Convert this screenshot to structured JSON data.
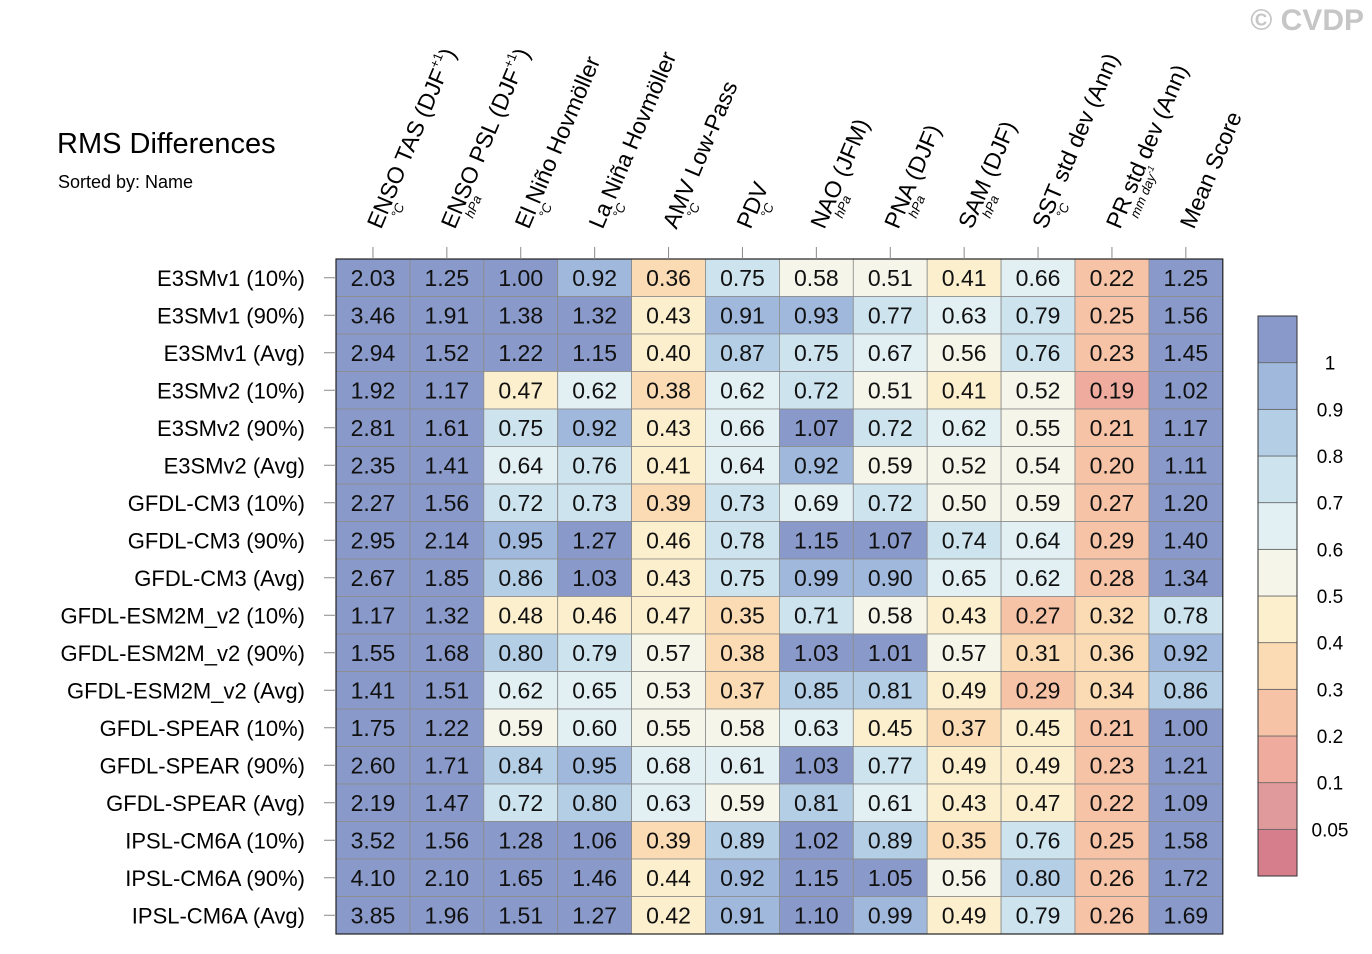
{
  "watermark": "© CVDP",
  "title": "RMS Differences",
  "subtitle": "Sorted by: Name",
  "chart_data": {
    "type": "heatmap",
    "title": "RMS Differences",
    "subtitle": "Sorted by: Name",
    "columns": [
      {
        "label": "ENSO TAS (DJF",
        "sup": "+1",
        "close": ")",
        "unit": "°C"
      },
      {
        "label": "ENSO PSL (DJF",
        "sup": "+1",
        "close": ")",
        "unit": "hPa"
      },
      {
        "label": "El Niño Hovmöller",
        "sup": "",
        "close": "",
        "unit": "°C"
      },
      {
        "label": "La Niña Hovmöller",
        "sup": "",
        "close": "",
        "unit": "°C"
      },
      {
        "label": "AMV Low-Pass",
        "sup": "",
        "close": "",
        "unit": "°C"
      },
      {
        "label": "PDV",
        "sup": "",
        "close": "",
        "unit": "°C"
      },
      {
        "label": "NAO (JFM)",
        "sup": "",
        "close": "",
        "unit": "hPa"
      },
      {
        "label": "PNA (DJF)",
        "sup": "",
        "close": "",
        "unit": "hPa"
      },
      {
        "label": "SAM (DJF)",
        "sup": "",
        "close": "",
        "unit": "hPa"
      },
      {
        "label": "SST std dev (Ann)",
        "sup": "",
        "close": "",
        "unit": "°C"
      },
      {
        "label": "PR std dev (Ann)",
        "sup": "",
        "close": "",
        "unit": "mm day",
        "unit_sup": "-1"
      },
      {
        "label": "Mean Score",
        "sup": "",
        "close": "",
        "unit": ""
      }
    ],
    "rows": [
      "E3SMv1 (10%)",
      "E3SMv1 (90%)",
      "E3SMv1 (Avg)",
      "E3SMv2 (10%)",
      "E3SMv2 (90%)",
      "E3SMv2 (Avg)",
      "GFDL-CM3 (10%)",
      "GFDL-CM3 (90%)",
      "GFDL-CM3 (Avg)",
      "GFDL-ESM2M_v2 (10%)",
      "GFDL-ESM2M_v2 (90%)",
      "GFDL-ESM2M_v2 (Avg)",
      "GFDL-SPEAR (10%)",
      "GFDL-SPEAR (90%)",
      "GFDL-SPEAR (Avg)",
      "IPSL-CM6A (10%)",
      "IPSL-CM6A (90%)",
      "IPSL-CM6A (Avg)"
    ],
    "values": [
      [
        "2.03",
        "1.25",
        "1.00",
        "0.92",
        "0.36",
        "0.75",
        "0.58",
        "0.51",
        "0.41",
        "0.66",
        "0.22",
        "1.25"
      ],
      [
        "3.46",
        "1.91",
        "1.38",
        "1.32",
        "0.43",
        "0.91",
        "0.93",
        "0.77",
        "0.63",
        "0.79",
        "0.25",
        "1.56"
      ],
      [
        "2.94",
        "1.52",
        "1.22",
        "1.15",
        "0.40",
        "0.87",
        "0.75",
        "0.67",
        "0.56",
        "0.76",
        "0.23",
        "1.45"
      ],
      [
        "1.92",
        "1.17",
        "0.47",
        "0.62",
        "0.38",
        "0.62",
        "0.72",
        "0.51",
        "0.41",
        "0.52",
        "0.19",
        "1.02"
      ],
      [
        "2.81",
        "1.61",
        "0.75",
        "0.92",
        "0.43",
        "0.66",
        "1.07",
        "0.72",
        "0.62",
        "0.55",
        "0.21",
        "1.17"
      ],
      [
        "2.35",
        "1.41",
        "0.64",
        "0.76",
        "0.41",
        "0.64",
        "0.92",
        "0.59",
        "0.52",
        "0.54",
        "0.20",
        "1.11"
      ],
      [
        "2.27",
        "1.56",
        "0.72",
        "0.73",
        "0.39",
        "0.73",
        "0.69",
        "0.72",
        "0.50",
        "0.59",
        "0.27",
        "1.20"
      ],
      [
        "2.95",
        "2.14",
        "0.95",
        "1.27",
        "0.46",
        "0.78",
        "1.15",
        "1.07",
        "0.74",
        "0.64",
        "0.29",
        "1.40"
      ],
      [
        "2.67",
        "1.85",
        "0.86",
        "1.03",
        "0.43",
        "0.75",
        "0.99",
        "0.90",
        "0.65",
        "0.62",
        "0.28",
        "1.34"
      ],
      [
        "1.17",
        "1.32",
        "0.48",
        "0.46",
        "0.47",
        "0.35",
        "0.71",
        "0.58",
        "0.43",
        "0.27",
        "0.32",
        "0.78"
      ],
      [
        "1.55",
        "1.68",
        "0.80",
        "0.79",
        "0.57",
        "0.38",
        "1.03",
        "1.01",
        "0.57",
        "0.31",
        "0.36",
        "0.92"
      ],
      [
        "1.41",
        "1.51",
        "0.62",
        "0.65",
        "0.53",
        "0.37",
        "0.85",
        "0.81",
        "0.49",
        "0.29",
        "0.34",
        "0.86"
      ],
      [
        "1.75",
        "1.22",
        "0.59",
        "0.60",
        "0.55",
        "0.58",
        "0.63",
        "0.45",
        "0.37",
        "0.45",
        "0.21",
        "1.00"
      ],
      [
        "2.60",
        "1.71",
        "0.84",
        "0.95",
        "0.68",
        "0.61",
        "1.03",
        "0.77",
        "0.49",
        "0.49",
        "0.23",
        "1.21"
      ],
      [
        "2.19",
        "1.47",
        "0.72",
        "0.80",
        "0.63",
        "0.59",
        "0.81",
        "0.61",
        "0.43",
        "0.47",
        "0.22",
        "1.09"
      ],
      [
        "3.52",
        "1.56",
        "1.28",
        "1.06",
        "0.39",
        "0.89",
        "1.02",
        "0.89",
        "0.35",
        "0.76",
        "0.25",
        "1.58"
      ],
      [
        "4.10",
        "2.10",
        "1.65",
        "1.46",
        "0.44",
        "0.92",
        "1.15",
        "1.05",
        "0.56",
        "0.80",
        "0.26",
        "1.72"
      ],
      [
        "3.85",
        "1.96",
        "1.51",
        "1.27",
        "0.42",
        "0.91",
        "1.10",
        "0.99",
        "0.49",
        "0.79",
        "0.26",
        "1.69"
      ]
    ],
    "colorbar": {
      "levels": [
        "0.05",
        "0.1",
        "0.2",
        "0.3",
        "0.4",
        "0.5",
        "0.6",
        "0.7",
        "0.8",
        "0.9",
        "1"
      ],
      "colors_low_to_high": [
        "#d67e8c",
        "#e19a9c",
        "#efab9e",
        "#f7c3a6",
        "#fadbb3",
        "#fcefcd",
        "#f5f5ea",
        "#e2f0f4",
        "#cde3ee",
        "#b4cee6",
        "#9fb8dc",
        "#8999c9"
      ]
    }
  }
}
